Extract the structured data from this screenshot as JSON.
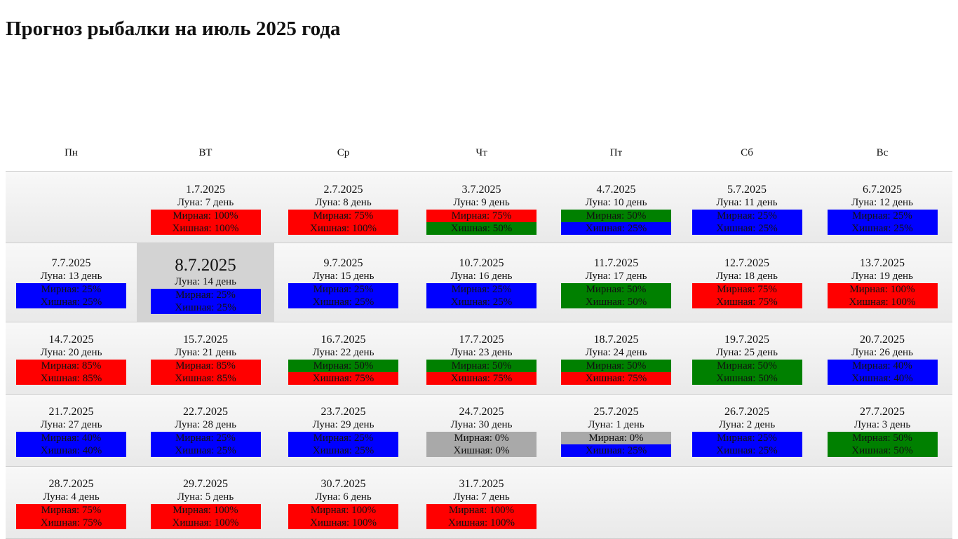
{
  "title": "Прогноз рыбалки на июль 2025 года",
  "weekdays": [
    "Пн",
    "ВТ",
    "Ср",
    "Чт",
    "Пт",
    "Сб",
    "Вс"
  ],
  "colors": {
    "red": "#ff0000",
    "green": "#008000",
    "blue": "#0000ff",
    "gray": "#a9a9a9",
    "today_bg": "#d3d3d3"
  },
  "days": [
    {
      "date": "1.7.2025",
      "moon": "Луна: 7 день",
      "peace": "Мирная: 100%",
      "peace_color": "red",
      "predator": "Хишная: 100%",
      "predator_color": "red"
    },
    {
      "date": "2.7.2025",
      "moon": "Луна: 8 день",
      "peace": "Мирная: 75%",
      "peace_color": "red",
      "predator": "Хишная: 100%",
      "predator_color": "red"
    },
    {
      "date": "3.7.2025",
      "moon": "Луна: 9 день",
      "peace": "Мирная: 75%",
      "peace_color": "red",
      "predator": "Хишная: 50%",
      "predator_color": "green"
    },
    {
      "date": "4.7.2025",
      "moon": "Луна: 10 день",
      "peace": "Мирная: 50%",
      "peace_color": "green",
      "predator": "Хишная: 25%",
      "predator_color": "blue"
    },
    {
      "date": "5.7.2025",
      "moon": "Луна: 11 день",
      "peace": "Мирная: 25%",
      "peace_color": "blue",
      "predator": "Хишная: 25%",
      "predator_color": "blue"
    },
    {
      "date": "6.7.2025",
      "moon": "Луна: 12 день",
      "peace": "Мирная: 25%",
      "peace_color": "blue",
      "predator": "Хишная: 25%",
      "predator_color": "blue"
    },
    {
      "date": "7.7.2025",
      "moon": "Луна: 13 день",
      "peace": "Мирная: 25%",
      "peace_color": "blue",
      "predator": "Хишная: 25%",
      "predator_color": "blue"
    },
    {
      "date": "8.7.2025",
      "moon": "Луна: 14 день",
      "peace": "Мирная: 25%",
      "peace_color": "blue",
      "predator": "Хишная: 25%",
      "predator_color": "blue"
    },
    {
      "date": "9.7.2025",
      "moon": "Луна: 15 день",
      "peace": "Мирная: 25%",
      "peace_color": "blue",
      "predator": "Хишная: 25%",
      "predator_color": "blue"
    },
    {
      "date": "10.7.2025",
      "moon": "Луна: 16 день",
      "peace": "Мирная: 25%",
      "peace_color": "blue",
      "predator": "Хишная: 25%",
      "predator_color": "blue"
    },
    {
      "date": "11.7.2025",
      "moon": "Луна: 17 день",
      "peace": "Мирная: 50%",
      "peace_color": "green",
      "predator": "Хишная: 50%",
      "predator_color": "green"
    },
    {
      "date": "12.7.2025",
      "moon": "Луна: 18 день",
      "peace": "Мирная: 75%",
      "peace_color": "red",
      "predator": "Хишная: 75%",
      "predator_color": "red"
    },
    {
      "date": "13.7.2025",
      "moon": "Луна: 19 день",
      "peace": "Мирная: 100%",
      "peace_color": "red",
      "predator": "Хишная: 100%",
      "predator_color": "red"
    },
    {
      "date": "14.7.2025",
      "moon": "Луна: 20 день",
      "peace": "Мирная: 85%",
      "peace_color": "red",
      "predator": "Хишная: 85%",
      "predator_color": "red"
    },
    {
      "date": "15.7.2025",
      "moon": "Луна: 21 день",
      "peace": "Мирная: 85%",
      "peace_color": "red",
      "predator": "Хишная: 85%",
      "predator_color": "red"
    },
    {
      "date": "16.7.2025",
      "moon": "Луна: 22 день",
      "peace": "Мирная: 50%",
      "peace_color": "green",
      "predator": "Хишная: 75%",
      "predator_color": "red"
    },
    {
      "date": "17.7.2025",
      "moon": "Луна: 23 день",
      "peace": "Мирная: 50%",
      "peace_color": "green",
      "predator": "Хишная: 75%",
      "predator_color": "red"
    },
    {
      "date": "18.7.2025",
      "moon": "Луна: 24 день",
      "peace": "Мирная: 50%",
      "peace_color": "green",
      "predator": "Хишная: 75%",
      "predator_color": "red"
    },
    {
      "date": "19.7.2025",
      "moon": "Луна: 25 день",
      "peace": "Мирная: 50%",
      "peace_color": "green",
      "predator": "Хишная: 50%",
      "predator_color": "green"
    },
    {
      "date": "20.7.2025",
      "moon": "Луна: 26 день",
      "peace": "Мирная: 40%",
      "peace_color": "blue",
      "predator": "Хишная: 40%",
      "predator_color": "blue"
    },
    {
      "date": "21.7.2025",
      "moon": "Луна: 27 день",
      "peace": "Мирная: 40%",
      "peace_color": "blue",
      "predator": "Хишная: 40%",
      "predator_color": "blue"
    },
    {
      "date": "22.7.2025",
      "moon": "Луна: 28 день",
      "peace": "Мирная: 25%",
      "peace_color": "blue",
      "predator": "Хишная: 25%",
      "predator_color": "blue"
    },
    {
      "date": "23.7.2025",
      "moon": "Луна: 29 день",
      "peace": "Мирная: 25%",
      "peace_color": "blue",
      "predator": "Хишная: 25%",
      "predator_color": "blue"
    },
    {
      "date": "24.7.2025",
      "moon": "Луна: 30 день",
      "peace": "Мирная: 0%",
      "peace_color": "gray",
      "predator": "Хишная: 0%",
      "predator_color": "gray"
    },
    {
      "date": "25.7.2025",
      "moon": "Луна: 1 день",
      "peace": "Мирная: 0%",
      "peace_color": "gray",
      "predator": "Хишная: 25%",
      "predator_color": "blue"
    },
    {
      "date": "26.7.2025",
      "moon": "Луна: 2 день",
      "peace": "Мирная: 25%",
      "peace_color": "blue",
      "predator": "Хишная: 25%",
      "predator_color": "blue"
    },
    {
      "date": "27.7.2025",
      "moon": "Луна: 3 день",
      "peace": "Мирная: 50%",
      "peace_color": "green",
      "predator": "Хишная: 50%",
      "predator_color": "green"
    },
    {
      "date": "28.7.2025",
      "moon": "Луна: 4 день",
      "peace": "Мирная: 75%",
      "peace_color": "red",
      "predator": "Хишная: 75%",
      "predator_color": "red"
    },
    {
      "date": "29.7.2025",
      "moon": "Луна: 5 день",
      "peace": "Мирная: 100%",
      "peace_color": "red",
      "predator": "Хишная: 100%",
      "predator_color": "red"
    },
    {
      "date": "30.7.2025",
      "moon": "Луна: 6 день",
      "peace": "Мирная: 100%",
      "peace_color": "red",
      "predator": "Хишная: 100%",
      "predator_color": "red"
    },
    {
      "date": "31.7.2025",
      "moon": "Луна: 7 день",
      "peace": "Мирная: 100%",
      "peace_color": "red",
      "predator": "Хишная: 100%",
      "predator_color": "red"
    }
  ]
}
